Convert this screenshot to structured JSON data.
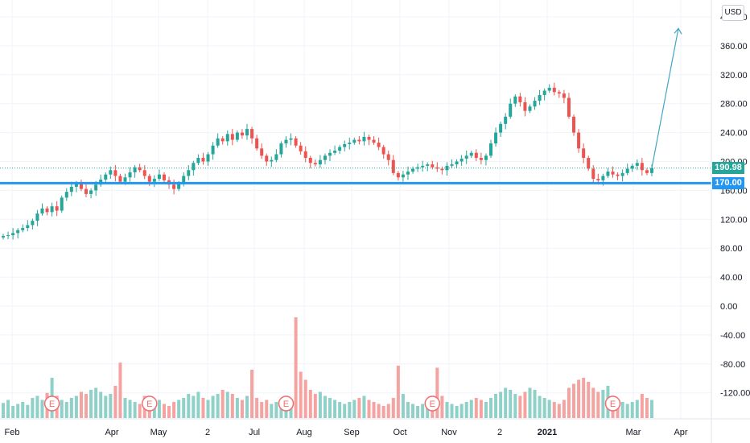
{
  "currency_label": "USD",
  "price_tags": {
    "last_price": "190.98",
    "support_level": "170.00"
  },
  "colors": {
    "up": "#26a69a",
    "down": "#ef5350",
    "support_line": "#2196f3",
    "projection_arrow": "#42a5c4",
    "last_price_tag": "#26a69a",
    "grid": "#f0f3fa",
    "earnings_marker": "#f26d6d"
  },
  "icons": {
    "earnings_marker": "circle-letter-e-icon",
    "projection": "arrow-up-icon"
  },
  "chart_data": {
    "type": "candlestick",
    "title": "",
    "xlabel": "",
    "ylabel": "",
    "x_tick_labels": [
      "Feb",
      "Apr",
      "May",
      "2",
      "Jul",
      "Aug",
      "Sep",
      "Oct",
      "Nov",
      "2",
      "2021",
      "Mar",
      "Apr"
    ],
    "y_tick_labels": [
      "400.00",
      "360.00",
      "320.00",
      "280.00",
      "240.00",
      "200.00",
      "160.00",
      "120.00",
      "80.00",
      "40.00",
      "0.00",
      "-40.00",
      "-80.00",
      "-120.00"
    ],
    "y_ticks": [
      400,
      360,
      320,
      280,
      240,
      200,
      160,
      120,
      80,
      40,
      0,
      -40,
      -80,
      -120
    ],
    "ylim": [
      -155,
      415
    ],
    "grid": true,
    "earnings_marker_label": "E",
    "earnings_markers_at_index": [
      10,
      30,
      58,
      88,
      125
    ],
    "horizontal_lines": [
      {
        "value": 190.98,
        "style": "dotted",
        "label": "190.98"
      },
      {
        "value": 170.0,
        "style": "solid",
        "label": "170.00"
      }
    ],
    "projection_arrow": {
      "from": {
        "index": 133,
        "value": 191
      },
      "to": {
        "index": 137,
        "value": 384
      }
    },
    "series": [
      {
        "name": "price",
        "close": [
          97,
          98,
          101,
          105,
          108,
          112,
          118,
          128,
          135,
          130,
          138,
          132,
          150,
          158,
          165,
          170,
          162,
          155,
          160,
          168,
          175,
          182,
          188,
          180,
          172,
          178,
          185,
          192,
          188,
          180,
          172,
          176,
          182,
          174,
          168,
          162,
          170,
          180,
          188,
          198,
          205,
          200,
          210,
          222,
          232,
          228,
          238,
          230,
          240,
          236,
          245,
          232,
          218,
          208,
          200,
          202,
          210,
          225,
          230,
          232,
          222,
          214,
          205,
          198,
          196,
          202,
          208,
          212,
          215,
          220,
          224,
          226,
          230,
          228,
          234,
          230,
          226,
          220,
          210,
          202,
          184,
          178,
          182,
          186,
          190,
          192,
          194,
          196,
          192,
          190,
          188,
          194,
          196,
          200,
          204,
          208,
          212,
          205,
          202,
          208,
          225,
          240,
          252,
          262,
          280,
          290,
          282,
          270,
          276,
          284,
          292,
          298,
          302,
          296,
          294,
          288,
          262,
          240,
          218,
          205,
          190,
          176,
          174,
          180,
          186,
          182,
          180,
          184,
          190,
          194,
          198,
          188,
          184,
          191
        ]
      },
      {
        "name": "volume",
        "values": [
          15,
          18,
          12,
          14,
          16,
          13,
          20,
          22,
          18,
          25,
          40,
          22,
          18,
          16,
          20,
          22,
          26,
          24,
          28,
          30,
          26,
          22,
          24,
          32,
          55,
          20,
          18,
          16,
          14,
          22,
          20,
          16,
          18,
          14,
          12,
          16,
          18,
          20,
          24,
          22,
          26,
          20,
          18,
          22,
          24,
          28,
          26,
          24,
          20,
          18,
          22,
          48,
          20,
          16,
          18,
          14,
          16,
          18,
          12,
          14,
          100,
          46,
          38,
          28,
          24,
          26,
          22,
          20,
          18,
          16,
          14,
          16,
          18,
          20,
          22,
          18,
          16,
          14,
          12,
          14,
          20,
          52,
          24,
          16,
          14,
          12,
          14,
          16,
          18,
          50,
          22,
          16,
          14,
          12,
          14,
          16,
          18,
          20,
          18,
          16,
          20,
          24,
          26,
          30,
          28,
          24,
          22,
          26,
          30,
          28,
          22,
          20,
          18,
          16,
          14,
          18,
          30,
          34,
          38,
          40,
          36,
          30,
          26,
          28,
          32,
          22,
          18,
          16,
          14,
          16,
          18,
          24,
          20,
          18
        ]
      }
    ]
  }
}
